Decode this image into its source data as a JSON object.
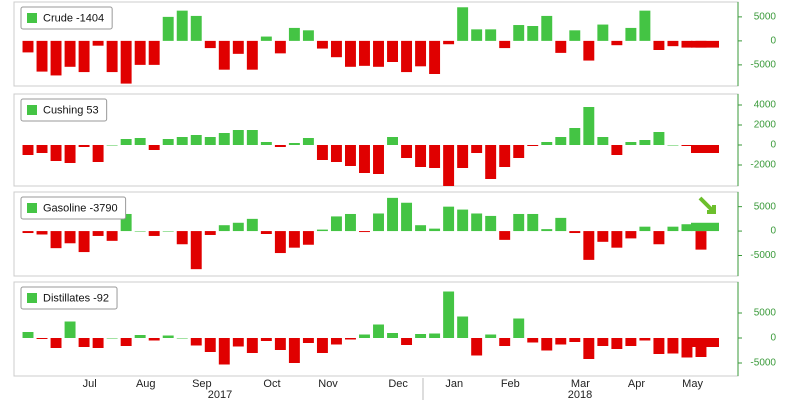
{
  "chart_data": [
    {
      "type": "bar",
      "series": [
        {
          "name": "Crude -1404",
          "color": "#44c444",
          "negative_color": "#e00000",
          "values": [
            -2400,
            -6400,
            -7200,
            -5400,
            -6500,
            -1000,
            -6500,
            -8900,
            -5000,
            -5000,
            5000,
            6300,
            5200,
            -1500,
            -6000,
            -2700,
            -6000,
            900,
            -2600,
            2700,
            2200,
            -1600,
            -3400,
            -5400,
            -5200,
            -5400,
            -4400,
            -6500,
            -5300,
            -6900,
            -700,
            7000,
            2400,
            2400,
            -1500,
            3300,
            3100,
            5200,
            -2500,
            2200,
            -4100,
            3400,
            -900,
            2700,
            6300,
            -1900,
            -1100,
            -1400,
            -1400,
            -1404
          ]
        }
      ],
      "ylim": [
        -9400,
        8100
      ],
      "yticks": [
        5000,
        0,
        -5000
      ]
    },
    {
      "type": "bar",
      "series": [
        {
          "name": "Cushing 53",
          "color": "#44c444",
          "negative_color": "#e00000",
          "values": [
            -1000,
            -800,
            -1600,
            -1800,
            -200,
            -1700,
            0,
            600,
            700,
            -500,
            600,
            800,
            1000,
            800,
            1200,
            1500,
            1500,
            300,
            -200,
            200,
            700,
            -1500,
            -1700,
            -2100,
            -2800,
            -2900,
            800,
            -1300,
            -2200,
            -2300,
            -4100,
            -2300,
            -800,
            -3400,
            -2200,
            -1300,
            -100,
            300,
            800,
            1700,
            3800,
            800,
            -1000,
            300,
            500,
            1300,
            0,
            -100,
            -700,
            -800
          ]
        }
      ],
      "ylim": [
        -4100,
        5100
      ],
      "yticks": [
        4000,
        2000,
        0,
        -2000
      ]
    },
    {
      "type": "bar",
      "series": [
        {
          "name": "Gasoline -3790",
          "color": "#44c444",
          "negative_color": "#e00000",
          "values": [
            -400,
            -700,
            -3500,
            -2500,
            -4300,
            -1000,
            -2000,
            3500,
            0,
            -1000,
            0,
            -2700,
            -7800,
            -800,
            1200,
            1700,
            2500,
            -600,
            -4500,
            -3400,
            -2800,
            300,
            3000,
            3500,
            -200,
            3600,
            6800,
            5800,
            1200,
            500,
            5000,
            4400,
            3600,
            3100,
            -1800,
            3500,
            3500,
            400,
            2700,
            -400,
            -5900,
            -2200,
            -3400,
            -1500,
            900,
            -2700,
            900,
            1400,
            -3800,
            1700
          ]
        }
      ],
      "ylim": [
        -9200,
        8000
      ],
      "yticks": [
        5000,
        0,
        -5000
      ]
    },
    {
      "type": "bar",
      "series": [
        {
          "name": "Distillates -92",
          "color": "#44c444",
          "negative_color": "#e00000",
          "values": [
            1200,
            -200,
            -2000,
            3300,
            -1800,
            -2000,
            0,
            -1600,
            600,
            -500,
            500,
            0,
            -1500,
            -2800,
            -5300,
            -1700,
            -3000,
            -600,
            -2400,
            -5000,
            -1000,
            -3000,
            -1300,
            -300,
            700,
            2700,
            1000,
            -1400,
            800,
            900,
            9300,
            4300,
            -3500,
            700,
            -1600,
            3900,
            -900,
            -2500,
            -1300,
            -800,
            -4200,
            -1600,
            -2200,
            -1600,
            -500,
            -3200,
            -3100,
            -3900,
            -3800,
            -1800
          ]
        }
      ],
      "ylim": [
        -7600,
        11200
      ],
      "yticks": [
        5000,
        0,
        -5000
      ],
      "categories": [
        null,
        null,
        null,
        null,
        "Jul",
        null,
        null,
        null,
        "Aug",
        null,
        null,
        null,
        "Sep",
        null,
        null,
        null,
        null,
        "Oct",
        null,
        null,
        null,
        "Nov",
        null,
        null,
        null,
        null,
        "Dec",
        null,
        null,
        null,
        "Jan",
        null,
        null,
        null,
        "Feb",
        null,
        null,
        null,
        null,
        "Mar",
        null,
        null,
        null,
        "Apr",
        null,
        null,
        null,
        "May",
        null,
        null
      ],
      "x_group_labels": [
        "2017",
        "2018"
      ]
    }
  ]
}
